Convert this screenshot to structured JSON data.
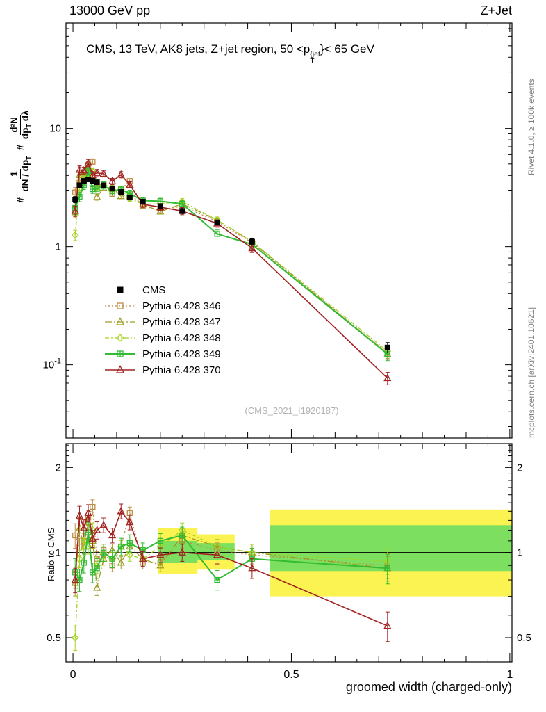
{
  "header": {
    "left": "13000 GeV pp",
    "right": "Z+Jet"
  },
  "title": {
    "prefix": "CMS, 13 TeV, AK8 jets, Z+jet region, 50 <p",
    "sup": "{jet",
    "sub": "T",
    "suffix": "}< 65 GeV"
  },
  "labels": {
    "xlabel": "groomed width (charged-only)",
    "ratio": "Ratio to CMS",
    "watermark": "(CMS_2021_I1920187)",
    "side_top": "Rivet 4.1.0, ≥ 100k events",
    "side_bottom": "mcplots.cern.ch [arXiv:2401.10621]"
  },
  "ylabel": {
    "hash1": "#",
    "f1num": "1",
    "f1den": "dN / dp",
    "f1densub": "T",
    "hash2": "#",
    "f2num": "d²N",
    "f2den": "dp",
    "f2densub": "T",
    "f2den2": " dλ"
  },
  "chart_data": {
    "type": "line",
    "title": "CMS, 13 TeV, AK8 jets, Z+jet region, 50 < pT(jet) < 65 GeV",
    "xlabel": "groomed width (charged-only)",
    "ylabel": "# 1/(dN/dpT) d2N/(dpT dlambda)",
    "ratio_label": "Ratio to CMS",
    "x_range": [
      -0.016,
      1.005
    ],
    "y_range": [
      0.024,
      78
    ],
    "y_scale": "log",
    "ratio_range": [
      0.41,
      2.43
    ],
    "ratio_scale": "log",
    "x_ticks": [
      {
        "v": 0,
        "label": "0"
      },
      {
        "v": 0.5,
        "label": "0.5"
      },
      {
        "v": 1,
        "label": "1"
      }
    ],
    "main_y_ticks": [
      {
        "v": 10,
        "base": "10",
        "exp": ""
      },
      {
        "v": 1,
        "base": "1",
        "exp": ""
      },
      {
        "v": 0.1,
        "base": "10",
        "exp": "-1"
      }
    ],
    "ratio_ticks": [
      {
        "v": 2,
        "label": "2"
      },
      {
        "v": 1,
        "label": "1"
      },
      {
        "v": 0.5,
        "label": "0.5"
      }
    ],
    "x": [
      0.005,
      0.015,
      0.025,
      0.035,
      0.045,
      0.055,
      0.07,
      0.09,
      0.11,
      0.13,
      0.16,
      0.2,
      0.25,
      0.33,
      0.41,
      0.72
    ],
    "cms": {
      "name": "CMS",
      "color": "#000000",
      "marker": "sq-f",
      "line": "none",
      "y": [
        2.5,
        3.3,
        3.6,
        3.7,
        3.6,
        3.5,
        3.3,
        3.1,
        2.9,
        2.6,
        2.4,
        2.2,
        2.0,
        1.6,
        1.1,
        0.14
      ],
      "err": [
        0.06,
        0.05,
        0.04,
        0.04,
        0.04,
        0.04,
        0.04,
        0.04,
        0.04,
        0.04,
        0.04,
        0.04,
        0.05,
        0.05,
        0.06,
        0.1
      ]
    },
    "series": [
      {
        "name": "Pythia 6.428 346",
        "color": "#bd8d46",
        "marker": "sq-o",
        "line": "dotted",
        "lw": 1.3,
        "ratio": [
          1.15,
          1.05,
          1.1,
          1.33,
          1.45,
          0.95,
          1.02,
          0.9,
          1.05,
          1.38,
          0.92,
          0.92,
          1.1,
          1.02,
          0.98,
          0.9
        ],
        "err": [
          0.1,
          0.07,
          0.06,
          0.06,
          0.06,
          0.06,
          0.05,
          0.05,
          0.05,
          0.05,
          0.05,
          0.05,
          0.06,
          0.06,
          0.07,
          0.1
        ]
      },
      {
        "name": "Pythia 6.428 347",
        "color": "#9c9e23",
        "marker": "tri-o",
        "line": "dashdot",
        "lw": 1.3,
        "ratio": [
          0.78,
          1.22,
          1.05,
          1.28,
          1.1,
          0.75,
          0.95,
          1.02,
          0.92,
          1.05,
          0.95,
          0.9,
          1.15,
          1.05,
          1.0,
          0.88
        ],
        "err": [
          0.1,
          0.07,
          0.06,
          0.06,
          0.06,
          0.06,
          0.05,
          0.05,
          0.05,
          0.05,
          0.05,
          0.05,
          0.06,
          0.06,
          0.07,
          0.1
        ]
      },
      {
        "name": "Pythia 6.428 348",
        "color": "#a4d322",
        "marker": "di-o",
        "line": "dashdot2",
        "lw": 1.3,
        "ratio": [
          0.5,
          0.95,
          1.1,
          1.05,
          1.2,
          0.9,
          1.0,
          0.95,
          1.05,
          0.98,
          0.95,
          1.05,
          1.2,
          1.05,
          1.0,
          0.93
        ],
        "err": [
          0.1,
          0.07,
          0.06,
          0.06,
          0.06,
          0.06,
          0.05,
          0.05,
          0.05,
          0.05,
          0.05,
          0.05,
          0.06,
          0.06,
          0.07,
          0.1
        ]
      },
      {
        "name": "Pythia 6.428 349",
        "color": "#33bb33",
        "marker": "sq-plus",
        "line": "solid",
        "lw": 2,
        "ratio": [
          0.85,
          0.8,
          0.92,
          1.18,
          0.85,
          0.88,
          1.0,
          0.95,
          1.05,
          1.08,
          1.02,
          1.1,
          1.15,
          0.8,
          0.95,
          0.88
        ],
        "err": [
          0.12,
          0.09,
          0.08,
          0.08,
          0.08,
          0.08,
          0.07,
          0.07,
          0.07,
          0.07,
          0.06,
          0.06,
          0.07,
          0.08,
          0.09,
          0.12
        ]
      },
      {
        "name": "Pythia 6.428 370",
        "color": "#a22121",
        "marker": "tri-o",
        "line": "solid",
        "lw": 1.6,
        "ratio": [
          0.8,
          1.35,
          1.22,
          1.38,
          1.12,
          1.2,
          1.25,
          1.15,
          1.4,
          1.28,
          0.95,
          0.98,
          1.0,
          0.98,
          0.88,
          0.55
        ],
        "err": [
          0.1,
          0.08,
          0.07,
          0.07,
          0.07,
          0.07,
          0.06,
          0.06,
          0.06,
          0.06,
          0.06,
          0.06,
          0.07,
          0.07,
          0.08,
          0.12
        ]
      }
    ],
    "bands": [
      {
        "x0": 0.195,
        "x1": 0.285,
        "ylo": 0.84,
        "yhi": 1.22,
        "color": "yellow"
      },
      {
        "x0": 0.285,
        "x1": 0.37,
        "ylo": 0.87,
        "yhi": 1.16,
        "color": "yellow"
      },
      {
        "x0": 0.45,
        "x1": 1.005,
        "ylo": 0.7,
        "yhi": 1.42,
        "color": "yellow"
      },
      {
        "x0": 0.195,
        "x1": 0.285,
        "ylo": 0.92,
        "yhi": 1.1,
        "color": "green"
      },
      {
        "x0": 0.285,
        "x1": 0.37,
        "ylo": 0.94,
        "yhi": 1.08,
        "color": "green"
      },
      {
        "x0": 0.45,
        "x1": 1.005,
        "ylo": 0.86,
        "yhi": 1.25,
        "color": "green"
      }
    ],
    "band_colors": {
      "yellow": "#fbf352",
      "green": "#7ddf5f"
    },
    "legend_position": "middle-left"
  }
}
